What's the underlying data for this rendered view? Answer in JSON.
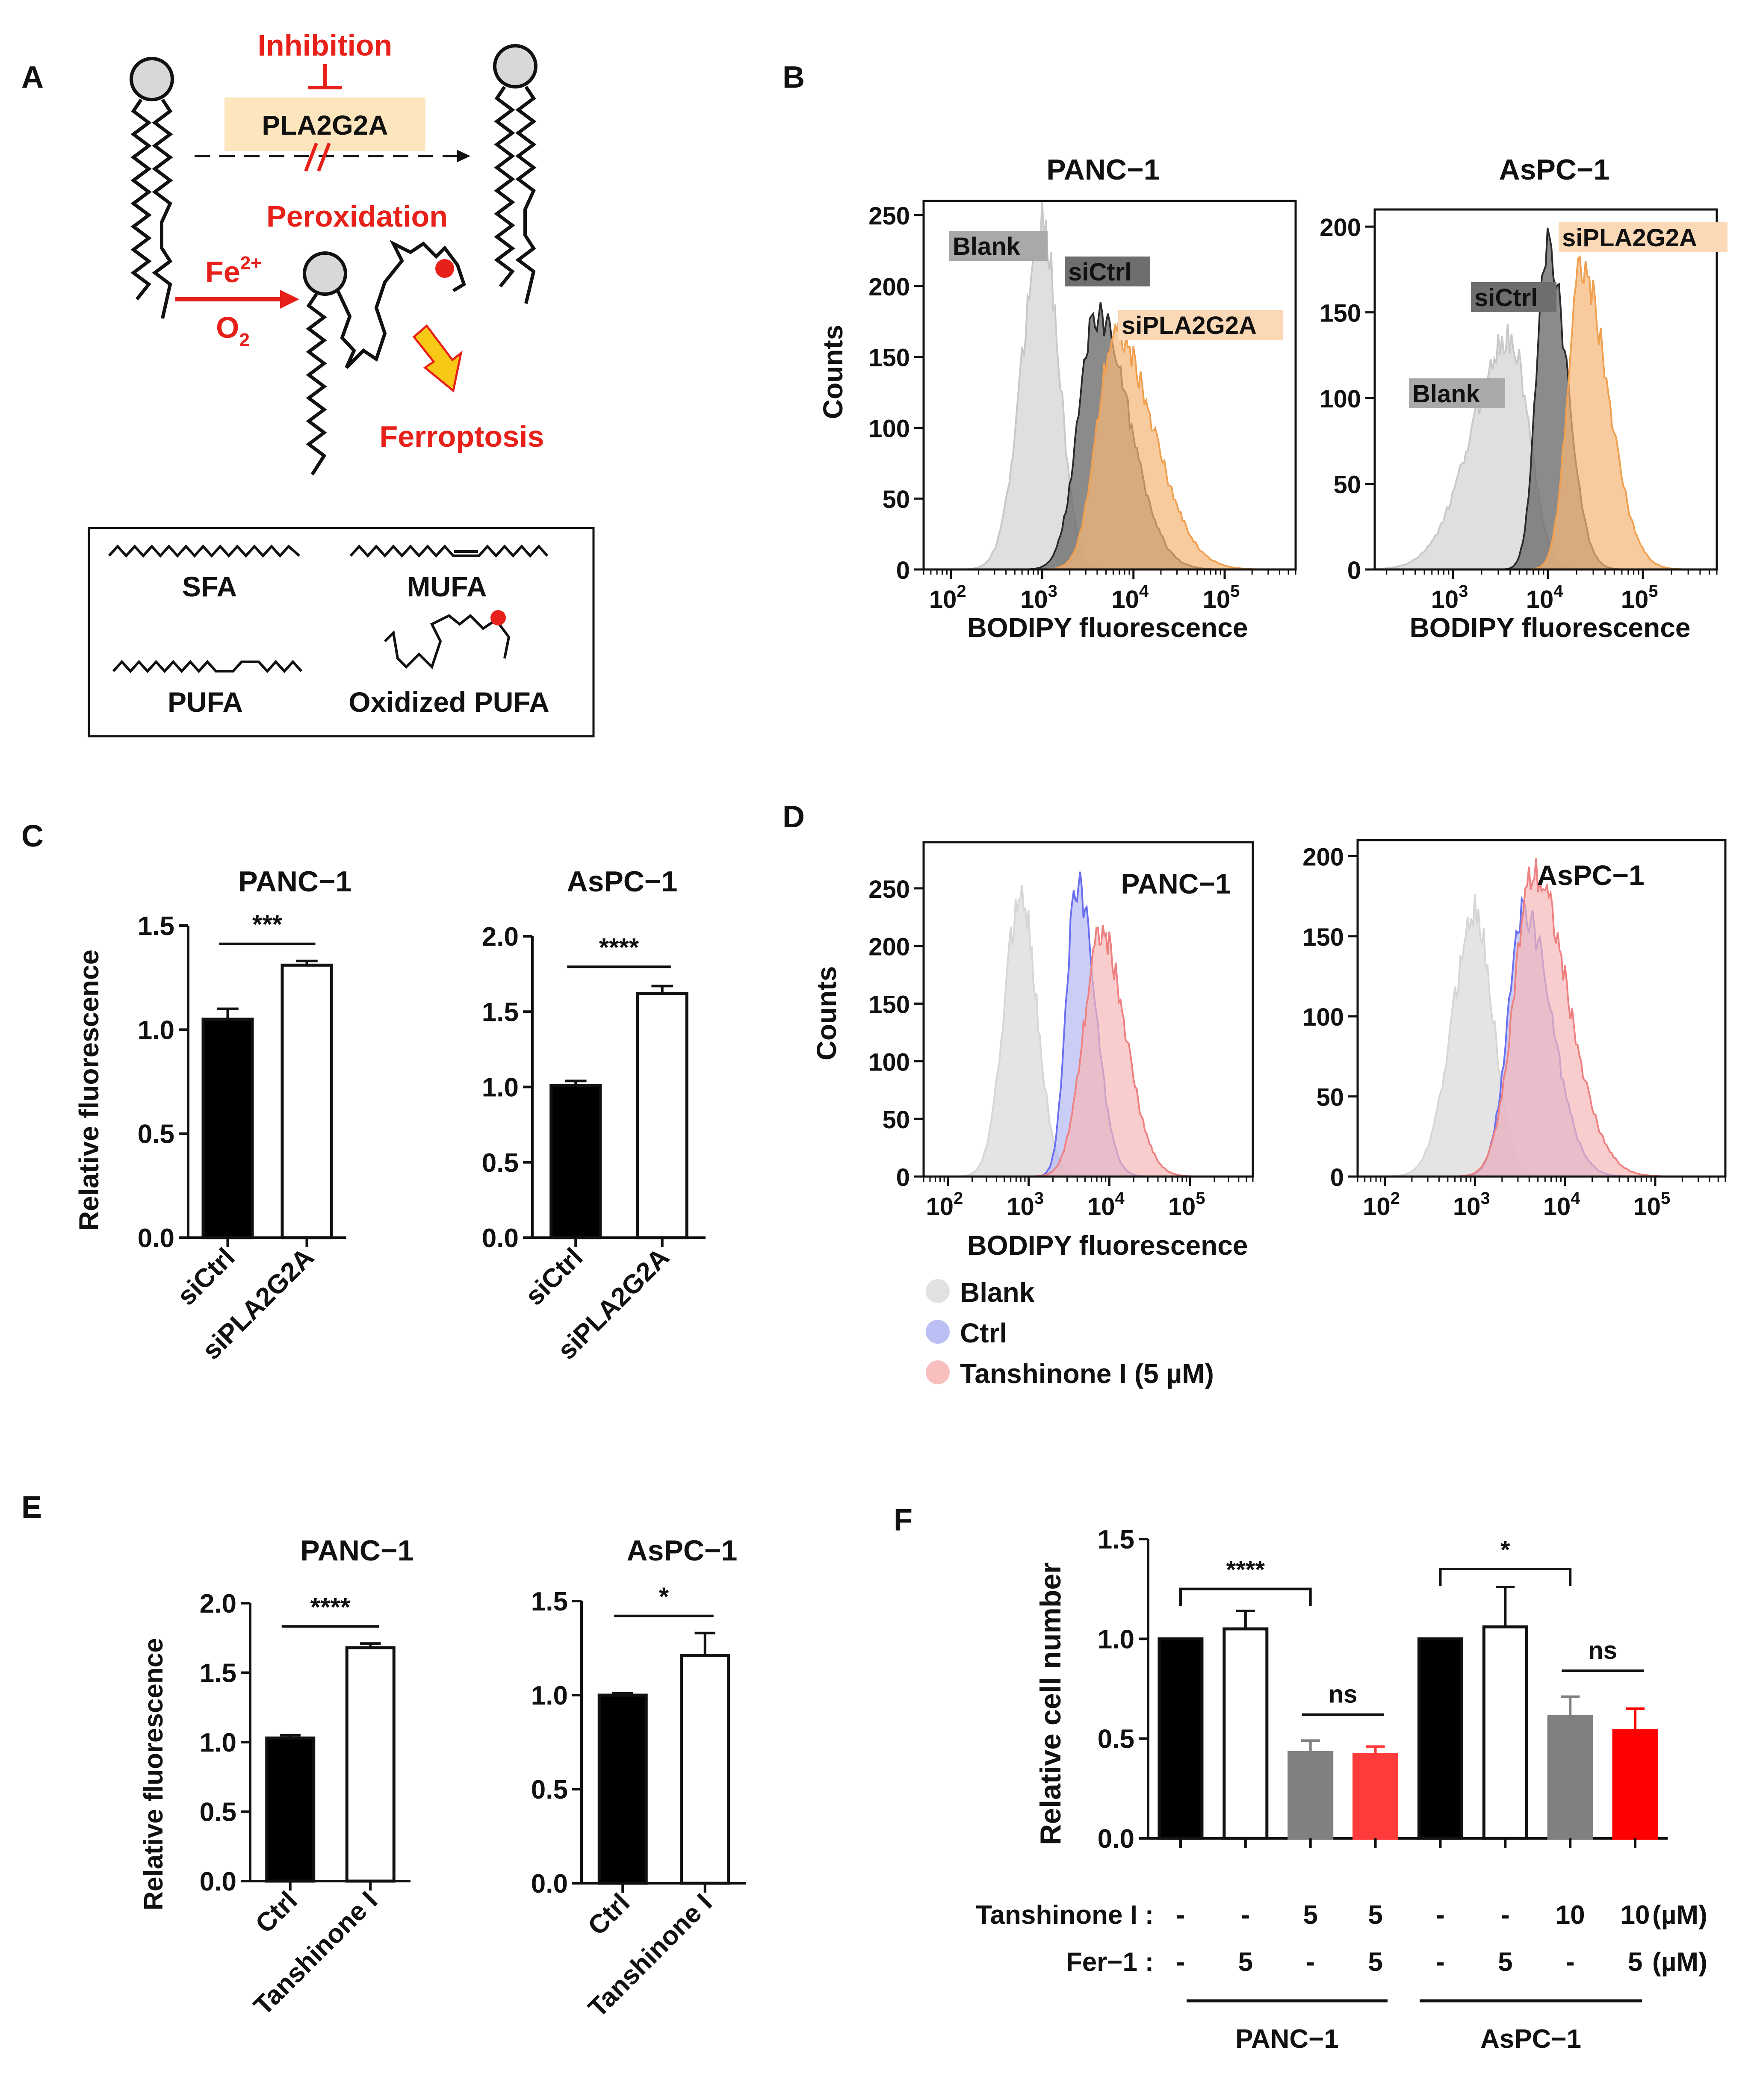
{
  "panel_letters": {
    "A": "A",
    "B": "B",
    "C": "C",
    "D": "D",
    "E": "E",
    "F": "F"
  },
  "panelA": {
    "inhibition": "Inhibition",
    "enzyme": "PLA2G2A",
    "peroxidation": "Peroxidation",
    "fe": "Fe",
    "fe_sup": "2+",
    "o2": "O",
    "o2_sub": "2",
    "ferroptosis": "Ferroptosis",
    "legend": {
      "sfa": "SFA",
      "mufa": "MUFA",
      "pufa": "PUFA",
      "oxpufa": "Oxidized PUFA"
    }
  },
  "colors": {
    "red": "#e8201a",
    "blank_fill": "#d9d9d9",
    "sictrl_fill": "#6e6e6e",
    "sipla_fill": "#f5b77a",
    "sipla_line": "#f0a050",
    "ctrl_fill": "#b4b8f2",
    "ctrl_line": "#6a6ff0",
    "tan_fill": "#f7b8b8",
    "tan_line": "#ef8080",
    "bar_black": "#000000",
    "bar_gray": "#808080",
    "bar_red": "#ff3b3b",
    "bar_red2": "#ff0000"
  },
  "chart_data": [
    {
      "id": "B-PANC1",
      "type": "area",
      "title": "PANC−1",
      "xlabel": "BODIPY fluorescence",
      "ylabel": "Counts",
      "xscale": "log",
      "xlim": [
        50,
        600000
      ],
      "ylim": [
        0,
        260
      ],
      "yticks": [
        0,
        50,
        100,
        150,
        200,
        250
      ],
      "xtick_labels": [
        "10",
        "10",
        "10",
        "10"
      ],
      "xtick_exps": [
        "2",
        "3",
        "4",
        "5"
      ],
      "series": [
        {
          "name": "Blank",
          "peak_log10": 3.0,
          "peak": 245,
          "sigma_l": 0.22,
          "sigma_r": 0.18
        },
        {
          "name": "siCtrl",
          "peak_log10": 3.6,
          "peak": 180,
          "sigma_l": 0.2,
          "sigma_r": 0.35
        },
        {
          "name": "siPLA2G2A",
          "peak_log10": 3.8,
          "peak": 165,
          "sigma_l": 0.2,
          "sigma_r": 0.42
        }
      ],
      "labels": [
        "Blank",
        "siCtrl",
        "siPLA2G2A"
      ]
    },
    {
      "id": "B-AsPC1",
      "type": "area",
      "title": "AsPC−1",
      "xlabel": "BODIPY fluorescence",
      "ylabel": "",
      "xscale": "log",
      "xlim": [
        150,
        600000
      ],
      "ylim": [
        0,
        210
      ],
      "yticks": [
        0,
        50,
        100,
        150,
        200
      ],
      "xtick_labels": [
        "10",
        "10",
        "10"
      ],
      "xtick_exps": [
        "3",
        "4",
        "5"
      ],
      "series": [
        {
          "name": "Blank",
          "peak_log10": 3.6,
          "peak": 135,
          "sigma_l": 0.4,
          "sigma_r": 0.2
        },
        {
          "name": "siCtrl",
          "peak_log10": 4.0,
          "peak": 187,
          "sigma_l": 0.12,
          "sigma_r": 0.2
        },
        {
          "name": "siPLA2G2A",
          "peak_log10": 4.35,
          "peak": 175,
          "sigma_l": 0.14,
          "sigma_r": 0.28
        }
      ],
      "labels": [
        "Blank",
        "siCtrl",
        "siPLA2G2A"
      ]
    },
    {
      "id": "C-PANC1",
      "type": "bar",
      "title": "PANC−1",
      "ylabel": "Relative fluorescence",
      "categories": [
        "siCtrl",
        "siPLA2G2A"
      ],
      "values": [
        1.05,
        1.31
      ],
      "errors": [
        0.05,
        0.02
      ],
      "ylim": [
        0,
        1.5
      ],
      "yticks": [
        "0.0",
        "0.5",
        "1.0",
        "1.5"
      ],
      "significance": "***"
    },
    {
      "id": "C-AsPC1",
      "type": "bar",
      "title": "AsPC−1",
      "ylabel": "",
      "categories": [
        "siCtrl",
        "siPLA2G2A"
      ],
      "values": [
        1.01,
        1.62
      ],
      "errors": [
        0.03,
        0.05
      ],
      "ylim": [
        0,
        2.0
      ],
      "yticks": [
        "0.0",
        "0.5",
        "1.0",
        "1.5",
        "2.0"
      ],
      "significance": "****"
    },
    {
      "id": "D-PANC1",
      "type": "area",
      "title": "PANC−1",
      "xlabel": "BODIPY fluorescence",
      "ylabel": "Counts",
      "xscale": "log",
      "xlim": [
        50,
        600000
      ],
      "ylim": [
        0,
        290
      ],
      "yticks": [
        0,
        50,
        100,
        150,
        200,
        250
      ],
      "xtick_labels": [
        "10",
        "10",
        "10",
        "10"
      ],
      "xtick_exps": [
        "2",
        "3",
        "4",
        "5"
      ],
      "series": [
        {
          "name": "Blank",
          "peak_log10": 2.9,
          "peak": 245,
          "sigma_l": 0.2,
          "sigma_r": 0.2
        },
        {
          "name": "Ctrl",
          "peak_log10": 3.6,
          "peak": 255,
          "sigma_l": 0.13,
          "sigma_r": 0.22
        },
        {
          "name": "Tanshinone I (5 µM)",
          "peak_log10": 3.9,
          "peak": 210,
          "sigma_l": 0.22,
          "sigma_r": 0.3
        }
      ],
      "legend": [
        "Blank",
        "Ctrl",
        "Tanshinone I (5 µM)"
      ]
    },
    {
      "id": "D-AsPC1",
      "type": "area",
      "title": "AsPC−1",
      "xlabel": "",
      "ylabel": "",
      "xscale": "log",
      "xlim": [
        50,
        600000
      ],
      "ylim": [
        0,
        210
      ],
      "yticks": [
        0,
        50,
        100,
        150,
        200
      ],
      "xtick_labels": [
        "10",
        "10",
        "10",
        "10"
      ],
      "xtick_exps": [
        "2",
        "3",
        "4",
        "5"
      ],
      "series": [
        {
          "name": "Blank",
          "peak_log10": 3.0,
          "peak": 165,
          "sigma_l": 0.25,
          "sigma_r": 0.2
        },
        {
          "name": "Ctrl",
          "peak_log10": 3.55,
          "peak": 165,
          "sigma_l": 0.18,
          "sigma_r": 0.3
        },
        {
          "name": "Tanshinone I (5 µM)",
          "peak_log10": 3.65,
          "peak": 188,
          "sigma_l": 0.22,
          "sigma_r": 0.38
        }
      ]
    },
    {
      "id": "E-PANC1",
      "type": "bar",
      "title": "PANC−1",
      "ylabel": "Relative fluorescence",
      "categories": [
        "Ctrl",
        "Tanshinone I"
      ],
      "values": [
        1.03,
        1.68
      ],
      "errors": [
        0.02,
        0.03
      ],
      "ylim": [
        0,
        2.0
      ],
      "yticks": [
        "0.0",
        "0.5",
        "1.0",
        "1.5",
        "2.0"
      ],
      "significance": "****"
    },
    {
      "id": "E-AsPC1",
      "type": "bar",
      "title": "AsPC−1",
      "ylabel": "",
      "categories": [
        "Ctrl",
        "Tanshinone I"
      ],
      "values": [
        1.0,
        1.21
      ],
      "errors": [
        0.01,
        0.12
      ],
      "ylim": [
        0,
        1.5
      ],
      "yticks": [
        "0.0",
        "0.5",
        "1.0",
        "1.5"
      ],
      "significance": "*"
    },
    {
      "id": "F",
      "type": "bar",
      "title": "",
      "ylabel": "Relative cell number",
      "ylim": [
        0,
        1.5
      ],
      "yticks": [
        "0.0",
        "0.5",
        "1.0",
        "1.5"
      ],
      "values": [
        1.0,
        1.05,
        0.43,
        0.42,
        1.0,
        1.06,
        0.61,
        0.54
      ],
      "errors": [
        0,
        0.09,
        0.06,
        0.04,
        0,
        0.2,
        0.1,
        0.11
      ],
      "row1_label": "Tanshinone I",
      "row1": [
        "-",
        "-",
        "5",
        "5",
        "-",
        "-",
        "10",
        "10"
      ],
      "row1_unit": "(µM)",
      "row2_label": "Fer−1",
      "row2": [
        "-",
        "5",
        "-",
        "5",
        "-",
        "5",
        "-",
        "5"
      ],
      "row2_unit": "(µM)",
      "groups": [
        "PANC−1",
        "AsPC−1"
      ],
      "sig_labels": [
        "****",
        "ns",
        "*",
        "ns"
      ]
    }
  ]
}
